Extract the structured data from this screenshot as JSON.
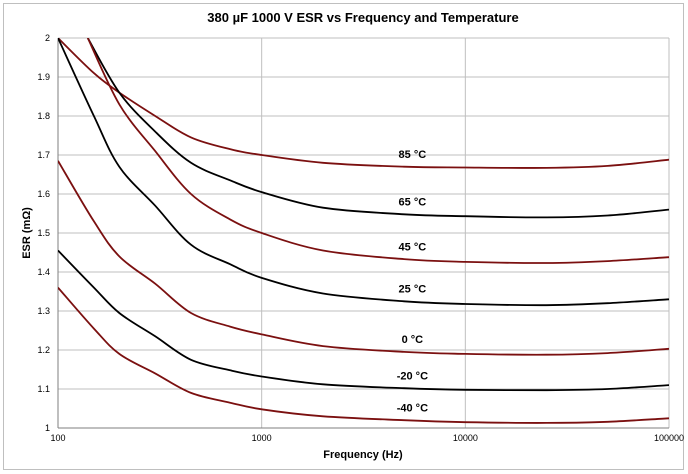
{
  "chart_data": {
    "type": "line",
    "title": "380 µF 1000 V ESR vs Frequency and Temperature",
    "xlabel": "Frequency (Hz)",
    "ylabel": "ESR (mΩ)",
    "x_scale": "log",
    "xlim": [
      100,
      100000
    ],
    "ylim": [
      1,
      2
    ],
    "x_ticks": [
      "100",
      "1000",
      "10000",
      "100000"
    ],
    "y_ticks": [
      "1",
      "1.1",
      "1.2",
      "1.3",
      "1.4",
      "1.5",
      "1.6",
      "1.7",
      "1.8",
      "1.9",
      "2"
    ],
    "grid": true,
    "colors": {
      "dark_red": "#7b1010",
      "black": "#000000",
      "grid": "#bfbfbf"
    },
    "series": [
      {
        "name": "85 °C",
        "color": "#7b1010",
        "x": [
          100,
          150,
          200,
          300,
          450,
          700,
          1000,
          2000,
          5000,
          10000,
          25000,
          50000,
          100000
        ],
        "y": [
          2.0,
          1.91,
          1.86,
          1.8,
          1.745,
          1.715,
          1.7,
          1.68,
          1.67,
          1.668,
          1.667,
          1.672,
          1.688
        ]
      },
      {
        "name": "65 °C",
        "color": "#000000",
        "x": [
          140,
          200,
          300,
          450,
          700,
          1000,
          2000,
          5000,
          10000,
          25000,
          50000,
          100000
        ],
        "y": [
          2.0,
          1.86,
          1.76,
          1.68,
          1.635,
          1.605,
          1.565,
          1.548,
          1.543,
          1.54,
          1.545,
          1.56
        ]
      },
      {
        "name": "45 °C",
        "color": "#7b1010",
        "x": [
          140,
          200,
          300,
          450,
          700,
          1000,
          2000,
          5000,
          10000,
          25000,
          50000,
          100000
        ],
        "y": [
          2.0,
          1.83,
          1.71,
          1.6,
          1.535,
          1.5,
          1.455,
          1.433,
          1.426,
          1.423,
          1.428,
          1.438
        ]
      },
      {
        "name": "25 °C",
        "color": "#000000",
        "x": [
          100,
          150,
          200,
          300,
          450,
          700,
          1000,
          2000,
          5000,
          10000,
          25000,
          50000,
          100000
        ],
        "y": [
          2.0,
          1.8,
          1.67,
          1.57,
          1.47,
          1.42,
          1.385,
          1.345,
          1.325,
          1.318,
          1.315,
          1.32,
          1.33
        ]
      },
      {
        "name": "0 °C",
        "color": "#7b1010",
        "x": [
          100,
          150,
          200,
          300,
          450,
          700,
          1000,
          2000,
          5000,
          10000,
          25000,
          50000,
          100000
        ],
        "y": [
          1.685,
          1.53,
          1.44,
          1.37,
          1.295,
          1.26,
          1.24,
          1.21,
          1.195,
          1.19,
          1.188,
          1.192,
          1.203
        ]
      },
      {
        "name": "-20 °C",
        "color": "#000000",
        "x": [
          100,
          150,
          200,
          300,
          450,
          700,
          1000,
          2000,
          5000,
          10000,
          25000,
          50000,
          100000
        ],
        "y": [
          1.455,
          1.36,
          1.295,
          1.235,
          1.175,
          1.148,
          1.132,
          1.112,
          1.102,
          1.098,
          1.097,
          1.1,
          1.11
        ]
      },
      {
        "name": "-40 °C",
        "color": "#7b1010",
        "x": [
          100,
          150,
          200,
          300,
          450,
          700,
          1000,
          2000,
          5000,
          10000,
          25000,
          50000,
          100000
        ],
        "y": [
          1.36,
          1.255,
          1.19,
          1.14,
          1.09,
          1.065,
          1.048,
          1.03,
          1.02,
          1.015,
          1.013,
          1.016,
          1.025
        ]
      }
    ]
  }
}
